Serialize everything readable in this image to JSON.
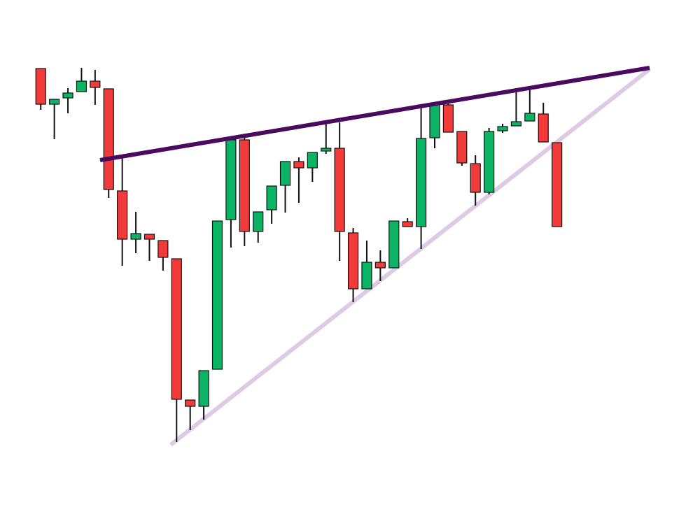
{
  "chart_data": {
    "type": "candlestick",
    "x": [
      0,
      1,
      2,
      3,
      4,
      5,
      6,
      7,
      8,
      9,
      10,
      11,
      12,
      13,
      14,
      15,
      16,
      17,
      18,
      19,
      20,
      21,
      22,
      23,
      24,
      25,
      26,
      27,
      28,
      29,
      30,
      31,
      32,
      33,
      34,
      35,
      36,
      37,
      38
    ],
    "open": [
      637,
      586,
      595,
      604,
      619,
      608,
      462,
      393,
      400,
      391,
      365,
      163,
      154,
      207,
      421,
      535,
      404,
      435,
      470,
      504,
      495,
      519,
      523,
      402,
      322,
      360,
      352,
      418,
      411,
      538,
      585,
      547,
      501,
      460,
      548,
      555,
      562,
      572,
      531
    ],
    "high": [
      637,
      593,
      609,
      638,
      635,
      608,
      510,
      432,
      400,
      391,
      365,
      163,
      205,
      419,
      539,
      539,
      432,
      469,
      504,
      510,
      517,
      559,
      560,
      409,
      391,
      377,
      419,
      423,
      585,
      587,
      589,
      547,
      513,
      552,
      558,
      607,
      608,
      588,
      531
    ],
    "low": [
      578,
      536,
      573,
      604,
      585,
      452,
      355,
      373,
      362,
      348,
      103,
      120,
      135,
      207,
      381,
      383,
      388,
      415,
      431,
      445,
      475,
      515,
      362,
      303,
      322,
      333,
      352,
      411,
      379,
      523,
      546,
      498,
      441,
      457,
      545,
      555,
      562,
      532,
      411
    ],
    "close": [
      586,
      593,
      602,
      619,
      610,
      464,
      393,
      401,
      393,
      367,
      164,
      154,
      205,
      419,
      535,
      404,
      432,
      469,
      504,
      495,
      517,
      523,
      404,
      322,
      360,
      352,
      419,
      411,
      537,
      585,
      546,
      502,
      460,
      547,
      554,
      561,
      573,
      532,
      411
    ],
    "up_color": "#0bb464",
    "down_color": "#f23a3a",
    "edge_color": "#111111",
    "xlim": [
      -3,
      47.5
    ],
    "ylim": [
      0,
      735
    ],
    "trendlines": [
      {
        "color": "#4a0a5e",
        "x": [
          4.37,
          44.82
        ],
        "values": [
          506,
          638
        ]
      },
      {
        "color": "#dccbe2",
        "x": [
          9.57,
          44.82
        ],
        "values": [
          99,
          636
        ]
      }
    ]
  }
}
